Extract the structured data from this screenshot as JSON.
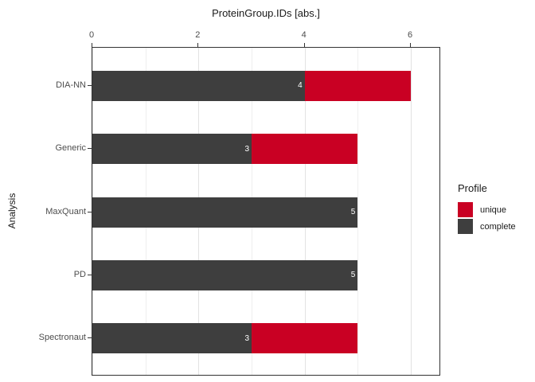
{
  "chart_data": {
    "type": "bar",
    "orientation": "horizontal",
    "stacked": true,
    "title": "ProteinGroup.IDs [abs.]",
    "ylabel": "Analysis",
    "categories": [
      "DIA-NN",
      "Generic",
      "MaxQuant",
      "PD",
      "Spectronaut"
    ],
    "series": [
      {
        "name": "complete",
        "color": "#3E3E3E",
        "values": [
          4,
          3,
          5,
          5,
          3
        ]
      },
      {
        "name": "unique",
        "color": "#C90023",
        "values": [
          2,
          2,
          0,
          0,
          2
        ]
      }
    ],
    "bar_labels": [
      "4",
      "3",
      "5",
      "5",
      "3"
    ],
    "x_ticks": [
      0,
      2,
      4,
      6
    ],
    "x_minor_ticks": [
      1,
      3,
      5
    ],
    "xlim": [
      0,
      6.57
    ],
    "grid": true,
    "legend_position": "right"
  },
  "legend": {
    "title": "Profile",
    "items": [
      {
        "label": "unique",
        "color": "#C90023"
      },
      {
        "label": "complete",
        "color": "#3E3E3E"
      }
    ]
  }
}
